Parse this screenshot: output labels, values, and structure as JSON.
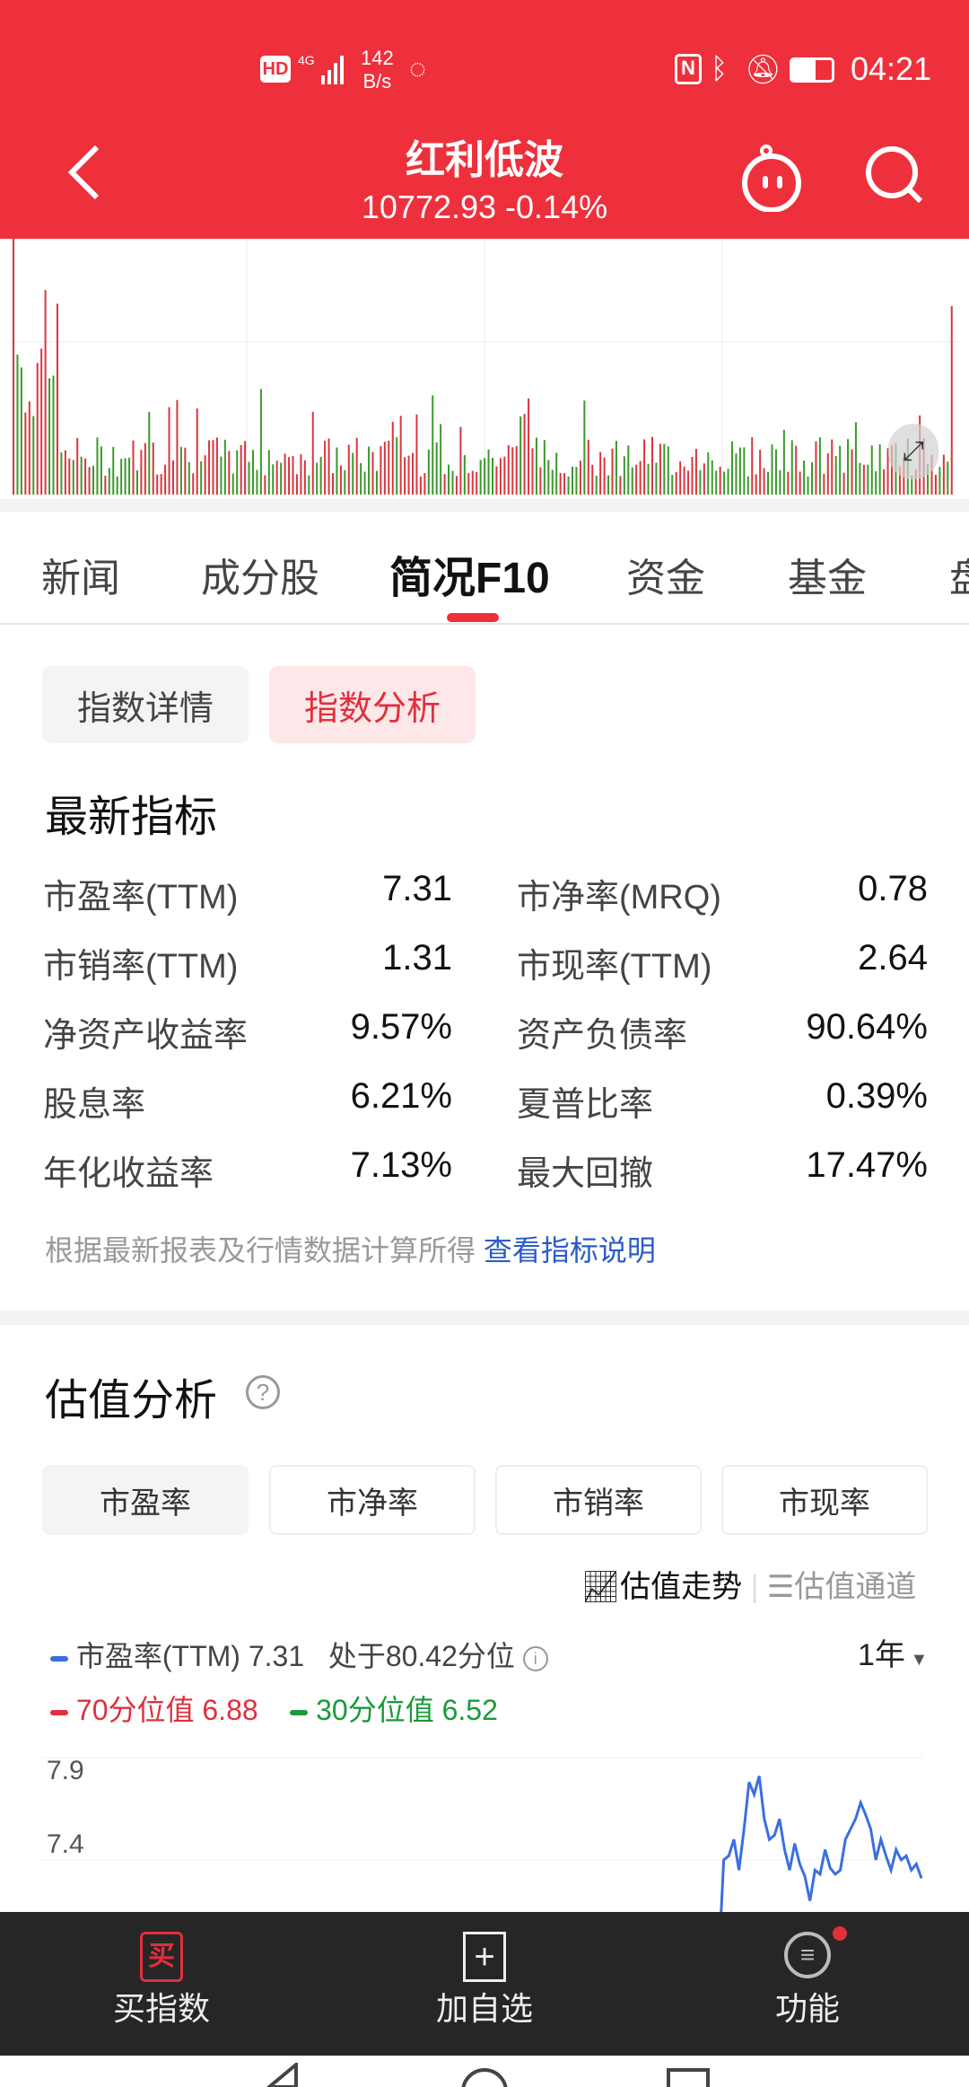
{
  "status_bar": {
    "net_speed_value": "142",
    "net_speed_unit": "B/s",
    "time": "04:21",
    "icons": [
      "hd-icon",
      "4g-signal-icon",
      "chat-icon",
      "nfc-icon",
      "bluetooth-icon",
      "mute-bell-icon",
      "battery-icon"
    ]
  },
  "header": {
    "title": "红利低波",
    "price": "10772.93",
    "change": "-0.14%",
    "icons": [
      "back-icon",
      "robot-assistant-icon",
      "search-icon"
    ]
  },
  "tabs": [
    {
      "label": "新闻"
    },
    {
      "label": "成分股"
    },
    {
      "label": "简况F10",
      "active": true
    },
    {
      "label": "资金"
    },
    {
      "label": "基金"
    },
    {
      "label": "盘口"
    }
  ],
  "subtabs": [
    {
      "label": "指数详情"
    },
    {
      "label": "指数分析",
      "active": true
    }
  ],
  "latest": {
    "title": "最新指标",
    "rows": [
      {
        "l1": "市盈率(TTM)",
        "v1": "7.31",
        "l2": "市净率(MRQ)",
        "v2": "0.78"
      },
      {
        "l1": "市销率(TTM)",
        "v1": "1.31",
        "l2": "市现率(TTM)",
        "v2": "2.64"
      },
      {
        "l1": "净资产收益率",
        "v1": "9.57%",
        "l2": "资产负债率",
        "v2": "90.64%"
      },
      {
        "l1": "股息率",
        "v1": "6.21%",
        "l2": "夏普比率",
        "v2": "0.39%"
      },
      {
        "l1": "年化收益率",
        "v1": "7.13%",
        "l2": "最大回撤",
        "v2": "17.47%"
      }
    ],
    "note": "根据最新报表及行情数据计算所得",
    "note_link": "查看指标说明"
  },
  "valuation": {
    "title": "估值分析",
    "tabs": [
      {
        "label": "市盈率",
        "active": true
      },
      {
        "label": "市净率"
      },
      {
        "label": "市销率"
      },
      {
        "label": "市现率"
      }
    ],
    "mode_trend": "估值走势",
    "mode_channel": "估值通道",
    "legend_pe": "市盈率(TTM) 7.31",
    "percentile": "处于80.42分位",
    "period": "1年",
    "p70": "70分位值 6.88",
    "p30": "30分位值 6.52",
    "colors": {
      "pe": "#3a6fe0",
      "p70": "#e0303c",
      "p30": "#1a9a3a"
    },
    "chart_data": {
      "type": "line",
      "y_ticks": [
        "7.9",
        "7.4"
      ],
      "series": [
        {
          "name": "市盈率(TTM)",
          "values": [
            6.9,
            7.4,
            7.42,
            7.5,
            7.35,
            7.55,
            7.78,
            7.72,
            7.81,
            7.6,
            7.5,
            7.52,
            7.6,
            7.45,
            7.35,
            7.48,
            7.38,
            7.32,
            7.2,
            7.35,
            7.33,
            7.45,
            7.36,
            7.33,
            7.35,
            7.5,
            7.55,
            7.6,
            7.68,
            7.62,
            7.55,
            7.4,
            7.5,
            7.42,
            7.35,
            7.45,
            7.4,
            7.42,
            7.35,
            7.38,
            7.31
          ]
        }
      ]
    }
  },
  "bottom_bar": {
    "buy": "买指数",
    "buy_glyph": "买",
    "add": "加自选",
    "func": "功能"
  }
}
